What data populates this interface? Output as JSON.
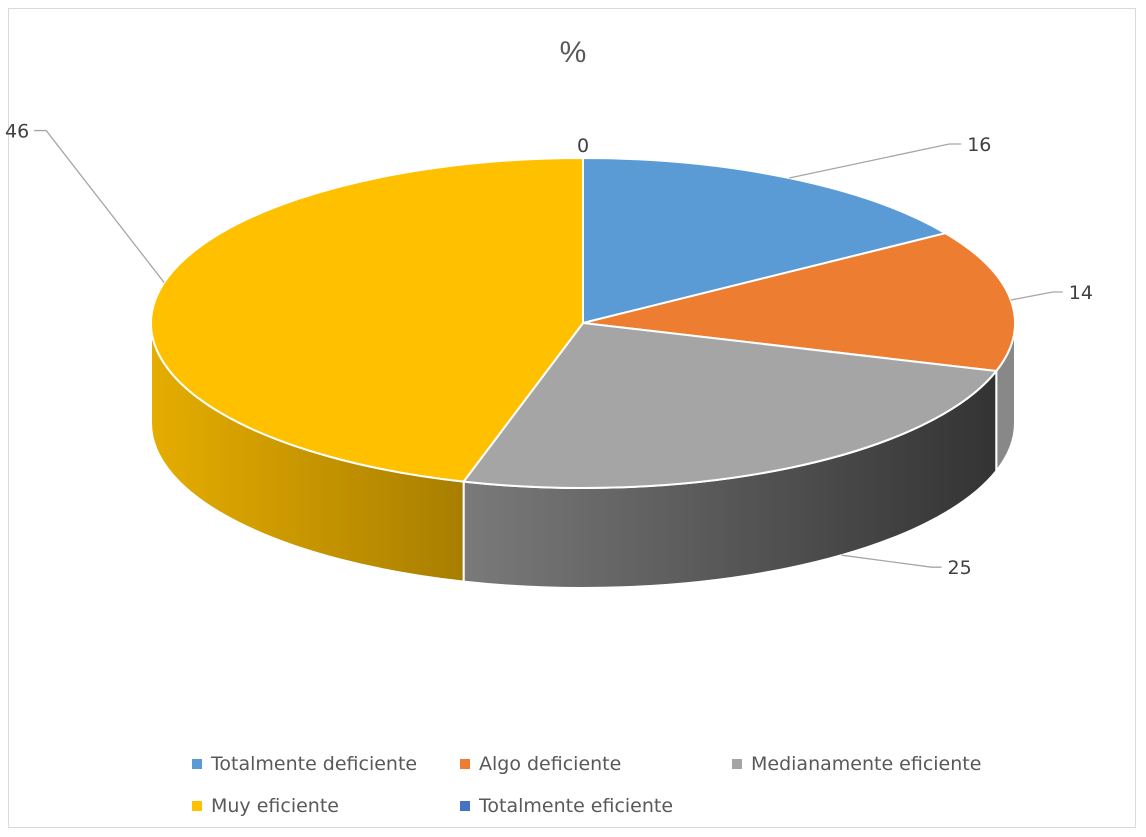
{
  "chart_data": {
    "type": "pie",
    "title": "%",
    "slices": [
      {
        "name": "Totalmente deficiente",
        "value": 16,
        "label": "16",
        "color": "#5b9bd5"
      },
      {
        "name": "Algo deficiente",
        "value": 14,
        "label": "14",
        "color": "#ed7d31"
      },
      {
        "name": "Medianamente eficiente",
        "value": 25,
        "label": "25",
        "color": "#a5a5a5"
      },
      {
        "name": "Muy eficiente",
        "value": 46,
        "label": "46",
        "color": "#ffc000"
      },
      {
        "name": "Totalmente eficiente",
        "value": 0,
        "label": "0",
        "color": "#4472c4"
      }
    ],
    "legend_position": "bottom",
    "style": "3d"
  }
}
